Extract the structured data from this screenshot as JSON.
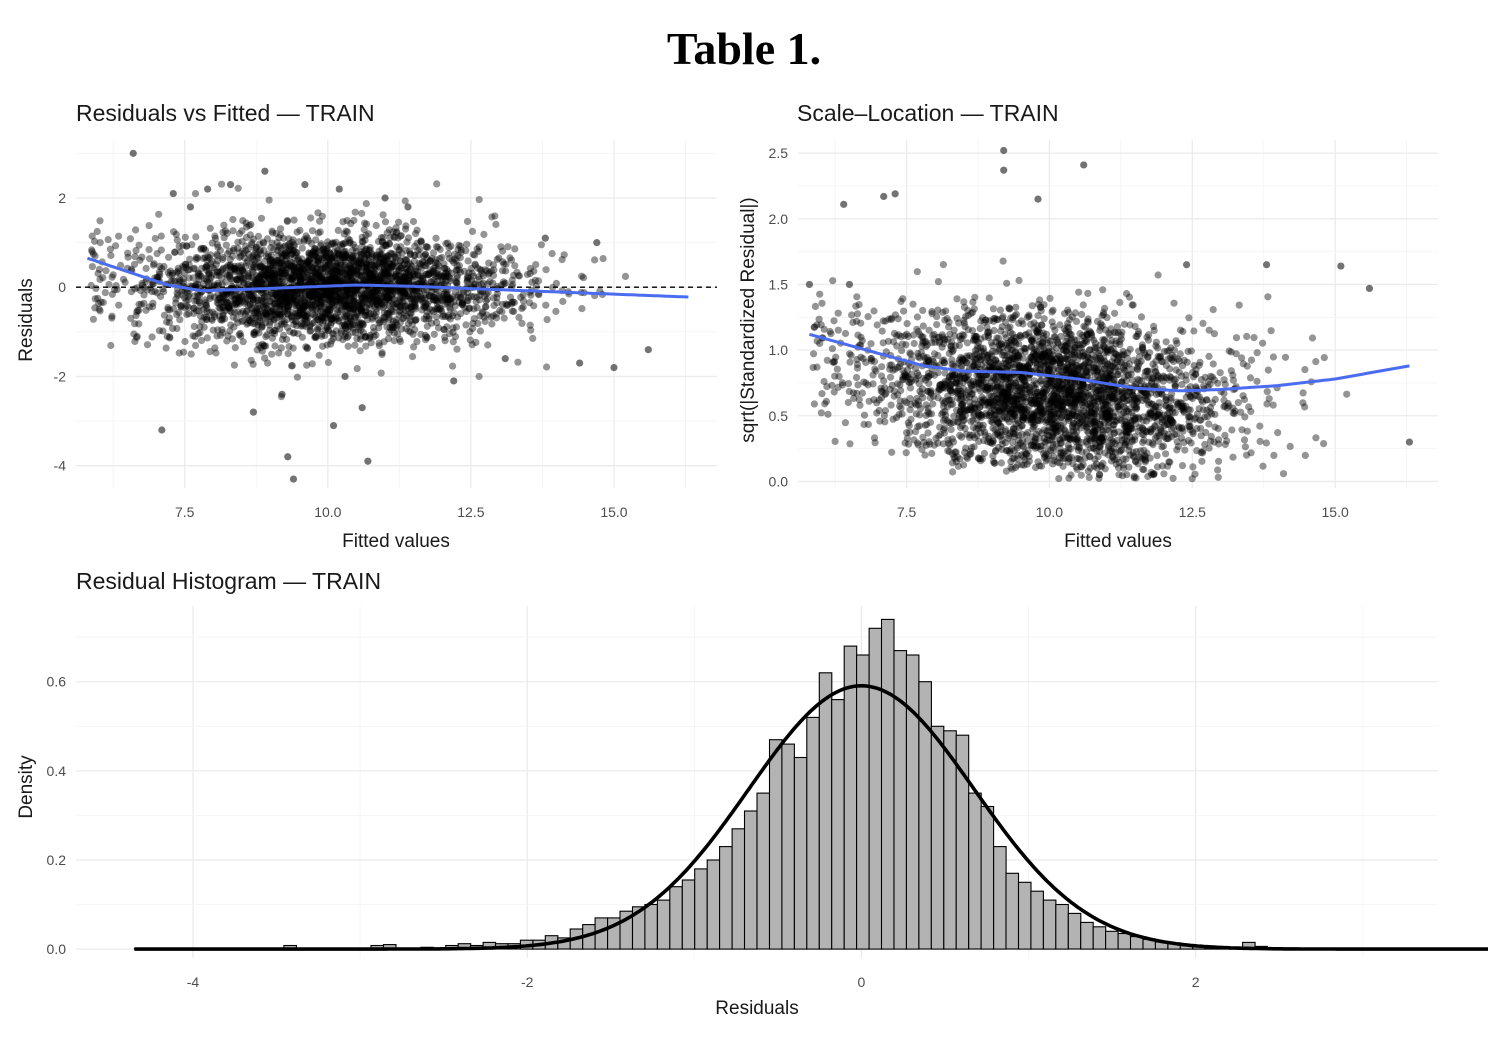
{
  "page": {
    "title": "Table 1."
  },
  "chart_data": [
    {
      "id": "resid-fitted",
      "type": "scatter",
      "title": "Residuals vs Fitted — TRAIN",
      "xlabel": "Fitted values",
      "ylabel": "Residuals",
      "xlim": [
        5.6,
        16.8
      ],
      "ylim": [
        -4.5,
        3.3
      ],
      "xticks": [
        7.5,
        10.0,
        12.5,
        15.0
      ],
      "xtick_labels": [
        "7.5",
        "10.0",
        "12.5",
        "15.0"
      ],
      "yticks": [
        -4,
        -2,
        0,
        2
      ],
      "ytick_labels": [
        "-4",
        "-2",
        "0",
        "2"
      ],
      "reference_line": {
        "y": 0,
        "style": "dashed"
      },
      "point_color": "#000000",
      "smooth_color": "#4a6cf0",
      "smooth": {
        "x": [
          5.8,
          6.5,
          7.2,
          7.8,
          8.5,
          9.5,
          10.5,
          11.5,
          12.5,
          13.5,
          14.5,
          15.5,
          16.3
        ],
        "y": [
          0.65,
          0.35,
          0.05,
          -0.08,
          -0.05,
          0.0,
          0.05,
          0.02,
          -0.03,
          -0.08,
          -0.13,
          -0.18,
          -0.22
        ]
      },
      "notable_points": {
        "x": [
          7.3,
          7.6,
          7.9,
          8.3,
          8.9,
          9.3,
          9.4,
          9.6,
          10.1,
          10.2,
          10.6,
          10.7,
          11.4,
          12.2,
          13.1,
          14.4,
          15.0,
          15.6,
          6.6,
          7.1,
          8.7,
          9.2,
          10.3,
          11.0,
          13.8,
          14.7
        ],
        "y": [
          2.1,
          1.8,
          2.2,
          2.3,
          2.6,
          -3.8,
          -4.3,
          2.3,
          -3.1,
          2.2,
          -2.7,
          -3.9,
          1.8,
          -2.1,
          -1.6,
          -1.7,
          -1.8,
          -1.4,
          3.0,
          -3.2,
          -2.8,
          -2.4,
          -2.0,
          2.0,
          1.1,
          1.0
        ]
      },
      "cloud": {
        "count": 3000,
        "x_mean": 10.0,
        "x_sd": 1.6,
        "resid_sd": 0.62
      }
    },
    {
      "id": "scale-location",
      "type": "scatter",
      "title": "Scale–Location — TRAIN",
      "xlabel": "Fitted values",
      "ylabel": "sqrt(|Standardized Residual|)",
      "xlim": [
        5.6,
        16.8
      ],
      "ylim": [
        -0.05,
        2.6
      ],
      "xticks": [
        7.5,
        10.0,
        12.5,
        15.0
      ],
      "xtick_labels": [
        "7.5",
        "10.0",
        "12.5",
        "15.0"
      ],
      "yticks": [
        0.0,
        0.5,
        1.0,
        1.5,
        2.0,
        2.5
      ],
      "ytick_labels": [
        "0.0",
        "0.5",
        "1.0",
        "1.5",
        "2.0",
        "2.5"
      ],
      "point_color": "#000000",
      "smooth_color": "#4a6cf0",
      "smooth": {
        "x": [
          5.8,
          6.8,
          7.8,
          8.5,
          9.5,
          10.5,
          11.5,
          12.3,
          13.0,
          14.0,
          15.0,
          16.3
        ],
        "y": [
          1.12,
          1.0,
          0.88,
          0.84,
          0.83,
          0.78,
          0.71,
          0.69,
          0.7,
          0.73,
          0.78,
          0.88
        ]
      },
      "notable_points": {
        "x": [
          9.2,
          9.2,
          10.6,
          7.1,
          7.3,
          6.4,
          13.8,
          15.1,
          15.6,
          16.3,
          5.8,
          6.5,
          12.4,
          9.8
        ],
        "y": [
          2.52,
          2.37,
          2.41,
          2.17,
          2.19,
          2.11,
          1.65,
          1.64,
          1.47,
          0.3,
          1.5,
          1.5,
          1.65,
          2.15
        ]
      },
      "cloud": {
        "count": 3000,
        "x_mean": 10.0,
        "x_sd": 1.6,
        "resid_sd": 0.62
      }
    },
    {
      "id": "resid-histogram",
      "type": "histogram",
      "title": "Residual Histogram — TRAIN",
      "xlabel": "Residuals",
      "ylabel": "Density",
      "xlim": [
        -4.7,
        3.45
      ],
      "ylim": [
        -0.02,
        0.77
      ],
      "xticks": [
        -4,
        -2,
        0,
        2
      ],
      "xtick_labels": [
        "-4",
        "-2",
        "0",
        "2"
      ],
      "yticks": [
        0.0,
        0.2,
        0.4,
        0.6
      ],
      "ytick_labels": [
        "0.0",
        "0.2",
        "0.4",
        "0.6"
      ],
      "bar_fill": "#b3b3b3",
      "bin_start": -4.35,
      "bin_width": 0.0745,
      "densities": [
        0.0,
        0.0,
        0.0,
        0.0,
        0.0,
        0.0,
        0.0,
        0.0,
        0.0,
        0.0,
        0.0,
        0.0,
        0.008,
        0.0,
        0.0,
        0.0,
        0.0,
        0.0,
        0.0,
        0.008,
        0.01,
        0.0,
        0.0,
        0.004,
        0.0,
        0.008,
        0.012,
        0.008,
        0.015,
        0.012,
        0.012,
        0.02,
        0.02,
        0.03,
        0.025,
        0.045,
        0.055,
        0.07,
        0.07,
        0.085,
        0.095,
        0.1,
        0.11,
        0.14,
        0.155,
        0.18,
        0.2,
        0.23,
        0.27,
        0.31,
        0.35,
        0.47,
        0.46,
        0.43,
        0.52,
        0.62,
        0.56,
        0.68,
        0.66,
        0.72,
        0.74,
        0.67,
        0.66,
        0.6,
        0.5,
        0.49,
        0.48,
        0.35,
        0.32,
        0.23,
        0.17,
        0.15,
        0.13,
        0.11,
        0.1,
        0.08,
        0.06,
        0.05,
        0.04,
        0.035,
        0.028,
        0.022,
        0.016,
        0.014,
        0.01,
        0.008,
        0.006,
        0.004,
        0.003,
        0.015,
        0.006,
        0.003,
        0.002,
        0.002,
        0.002,
        0.0,
        0.0,
        0.0,
        0.0,
        0.0,
        0.0,
        0.0,
        0.0,
        0.0,
        0.0,
        0.0,
        0.0,
        0.0,
        0.0
      ],
      "density_curve": {
        "type": "normal",
        "mean": 0.0,
        "sd": 0.675
      }
    }
  ]
}
